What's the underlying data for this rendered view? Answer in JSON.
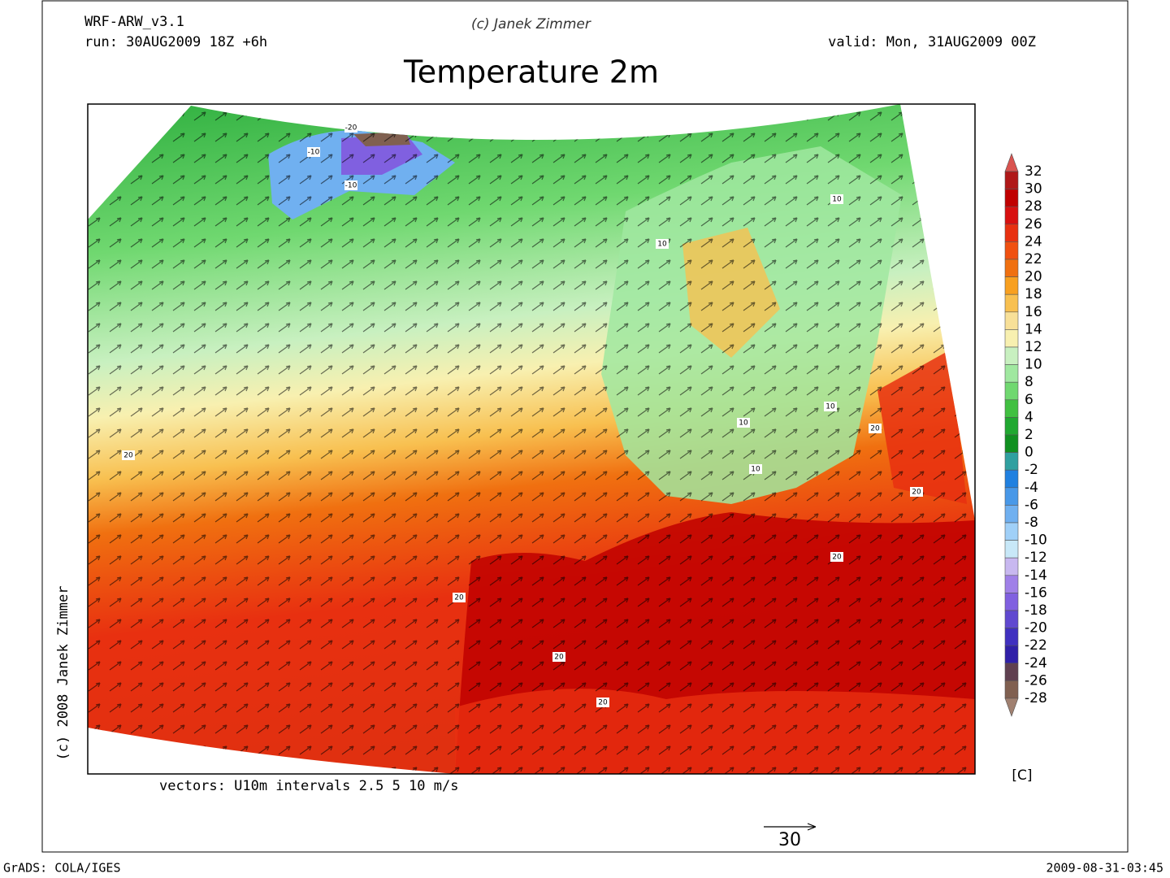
{
  "header": {
    "model": "WRF-ARW_v3.1",
    "run": "run: 30AUG2009 18Z +6h",
    "credit": "(c) Janek Zimmer",
    "valid": "valid: Mon, 31AUG2009 00Z",
    "title": "Temperature 2m"
  },
  "map": {
    "vectors_note": "vectors: U10m intervals 2.5 5 10 m/s",
    "side_credit": "(c) 2008 Janek Zimmer",
    "contour_labels": [
      "-20",
      "-10",
      "-10",
      "10",
      "10",
      "10",
      "10",
      "10",
      "20",
      "20",
      "20",
      "20",
      "20",
      "20",
      "20"
    ],
    "reference_vector": "30"
  },
  "colorbar": {
    "unit": "[C]",
    "levels": [
      32,
      30,
      28,
      26,
      24,
      22,
      20,
      18,
      16,
      14,
      12,
      10,
      8,
      6,
      4,
      2,
      0,
      -2,
      -4,
      -6,
      -8,
      -10,
      -12,
      -14,
      -16,
      -18,
      -20,
      -22,
      -24,
      -26,
      -28
    ],
    "colors": [
      "#d9534f",
      "#b01818",
      "#c00000",
      "#d81010",
      "#e83010",
      "#f05010",
      "#f07010",
      "#f8a020",
      "#f8c050",
      "#f8e098",
      "#f8f0b0",
      "#c8f0c0",
      "#a0e8a0",
      "#70d870",
      "#40c040",
      "#20a830",
      "#109020",
      "#30a0a0",
      "#2080e0",
      "#4898e8",
      "#70b0f0",
      "#a0d0f8",
      "#c8e8f8",
      "#c8b8f0",
      "#a080e8",
      "#8060e0",
      "#6048d0",
      "#4030c0",
      "#3020a8",
      "#604050",
      "#806050",
      "#a08070"
    ]
  },
  "footer": {
    "left": "GrADS: COLA/IGES",
    "right": "2009-08-31-03:45"
  }
}
